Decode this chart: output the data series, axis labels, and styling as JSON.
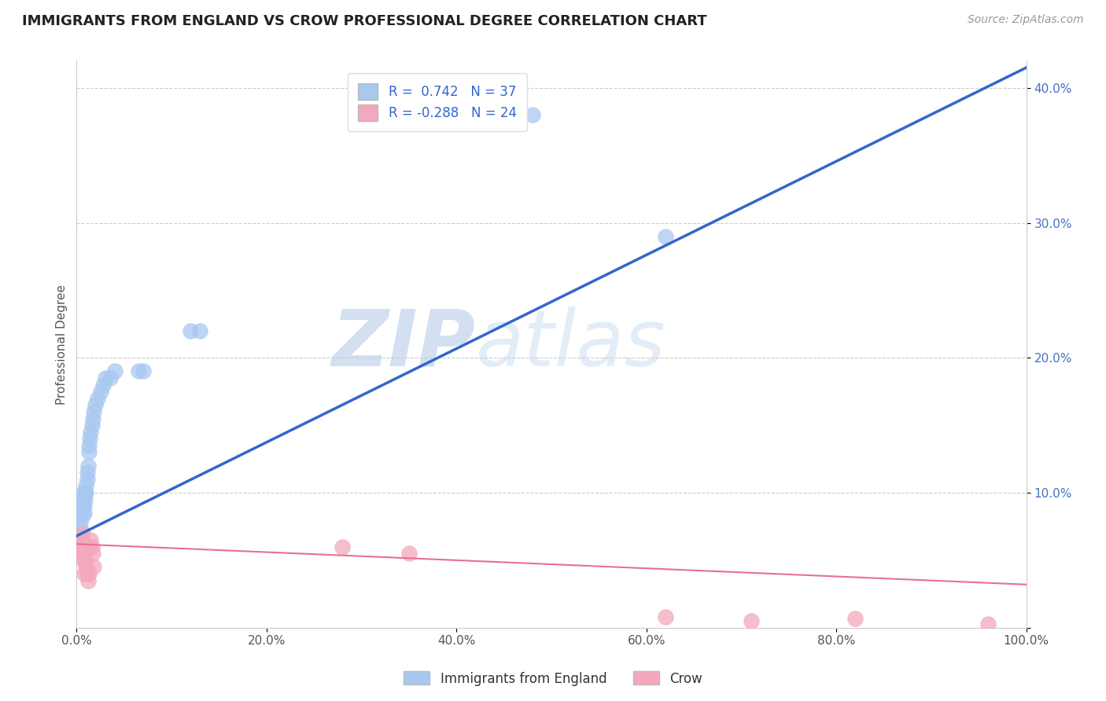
{
  "title": "IMMIGRANTS FROM ENGLAND VS CROW PROFESSIONAL DEGREE CORRELATION CHART",
  "source": "Source: ZipAtlas.com",
  "ylabel": "Professional Degree",
  "watermark_zip": "ZIP",
  "watermark_atlas": "atlas",
  "xlim": [
    0,
    1.0
  ],
  "ylim": [
    0,
    0.42
  ],
  "xticks": [
    0.0,
    0.2,
    0.4,
    0.6,
    0.8,
    1.0
  ],
  "xticklabels": [
    "0.0%",
    "20.0%",
    "40.0%",
    "60.0%",
    "80.0%",
    "100.0%"
  ],
  "yticks": [
    0.0,
    0.1,
    0.2,
    0.3,
    0.4
  ],
  "yticklabels": [
    "",
    "10.0%",
    "20.0%",
    "30.0%",
    "40.0%"
  ],
  "legend_labels": [
    "Immigrants from England",
    "Crow"
  ],
  "blue_color": "#A8C8F0",
  "pink_color": "#F4A8BC",
  "blue_line_color": "#3366CC",
  "pink_line_color": "#E87090",
  "grid_color": "#CCCCCC",
  "r_blue": 0.742,
  "n_blue": 37,
  "r_pink": -0.288,
  "n_pink": 24,
  "blue_scatter_x": [
    0.003,
    0.004,
    0.005,
    0.005,
    0.006,
    0.006,
    0.007,
    0.007,
    0.008,
    0.008,
    0.009,
    0.009,
    0.01,
    0.01,
    0.011,
    0.011,
    0.012,
    0.013,
    0.013,
    0.014,
    0.015,
    0.016,
    0.017,
    0.018,
    0.02,
    0.022,
    0.025,
    0.028,
    0.03,
    0.035,
    0.04,
    0.065,
    0.07,
    0.12,
    0.13,
    0.48,
    0.62
  ],
  "blue_scatter_y": [
    0.065,
    0.075,
    0.08,
    0.07,
    0.09,
    0.085,
    0.095,
    0.1,
    0.085,
    0.09,
    0.1,
    0.095,
    0.1,
    0.105,
    0.11,
    0.115,
    0.12,
    0.13,
    0.135,
    0.14,
    0.145,
    0.15,
    0.155,
    0.16,
    0.165,
    0.17,
    0.175,
    0.18,
    0.185,
    0.185,
    0.19,
    0.19,
    0.19,
    0.22,
    0.22,
    0.38,
    0.29
  ],
  "pink_scatter_x": [
    0.003,
    0.004,
    0.005,
    0.006,
    0.006,
    0.007,
    0.008,
    0.008,
    0.009,
    0.01,
    0.011,
    0.012,
    0.013,
    0.014,
    0.015,
    0.016,
    0.017,
    0.018,
    0.28,
    0.35,
    0.62,
    0.71,
    0.82,
    0.96
  ],
  "pink_scatter_y": [
    0.055,
    0.065,
    0.06,
    0.07,
    0.065,
    0.05,
    0.055,
    0.04,
    0.05,
    0.045,
    0.04,
    0.035,
    0.04,
    0.06,
    0.065,
    0.06,
    0.055,
    0.045,
    0.06,
    0.055,
    0.008,
    0.005,
    0.007,
    0.003
  ],
  "blue_line_x0": 0.0,
  "blue_line_y0": 0.068,
  "blue_line_x1": 1.0,
  "blue_line_y1": 0.415,
  "pink_line_x0": 0.0,
  "pink_line_y0": 0.062,
  "pink_line_x1": 1.0,
  "pink_line_y1": 0.032
}
